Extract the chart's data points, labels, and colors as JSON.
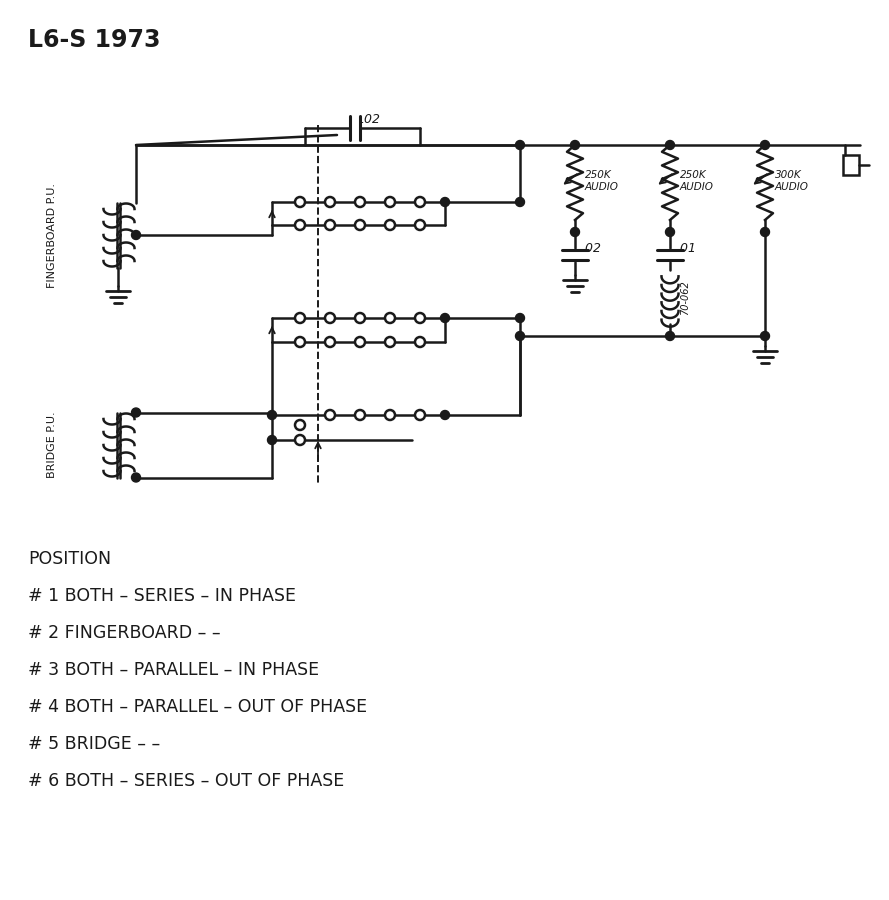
{
  "title": "L6-S 1973",
  "bg": "#ffffff",
  "lc": "#1a1a1a",
  "tc": "#1a1a1a",
  "positions_text": [
    "POSITION",
    "# 1 BOTH – SERIES – IN PHASE",
    "# 2 FINGERBOARD – –",
    "# 3 BOTH – PARALLEL – IN PHASE",
    "# 4 BOTH – PARALLEL – OUT OF PHASE",
    "# 5 BRIDGE – –",
    "# 6 BOTH – SERIES – OUT OF PHASE"
  ],
  "fp_label": "FINGERBOARD P.U.",
  "bp_label": "BRIDGE P.U.",
  "cap1_label": ".02",
  "cap2_label": ".02",
  "cap3_label": ".01",
  "ind_label": "70-062",
  "res1_label": "250K\nAUDIO",
  "res2_label": "250K\nAUDIO",
  "res3_label": "300K\nAUDIO"
}
